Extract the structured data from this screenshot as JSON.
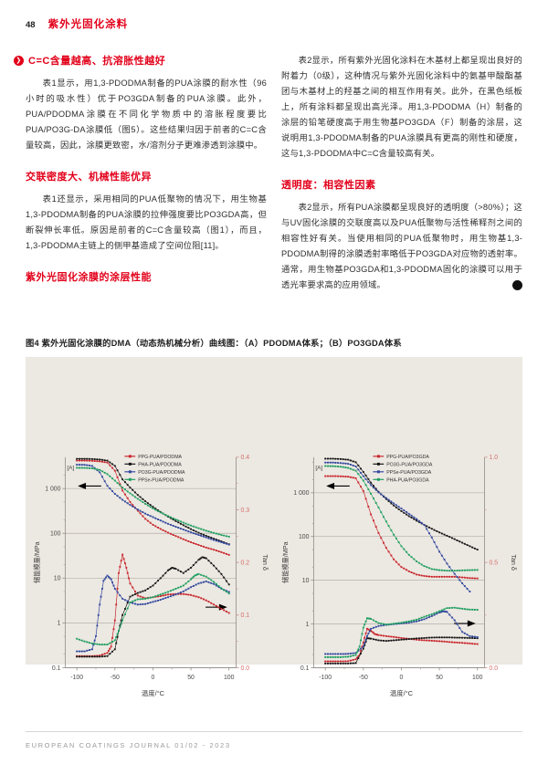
{
  "header": {
    "page_number": "48",
    "section_title": "紫外光光固化涂料",
    "section_title_display": "紫外光固化涂料"
  },
  "left_column": {
    "section1_heading": "C=C含量越高、抗溶胀性越好",
    "section1_body": "表1显示，用1,3-PDODMA制备的PUA涂膜的耐水性（96小时的吸水性）优于PO3GDA制备的PUA涂膜。此外，PUA/PDODMA涂膜在不同化学物质中的溶胀程度要比PUA/PO3G-DA涂膜低（图5）。这些结果归因于前者的C=C含量较高，因此，涂膜更致密，水/溶剂分子更难渗透到涂膜中。",
    "section2_heading": "交联密度大、机械性能优异",
    "section2_body": "表1还显示，采用相同的PUA低聚物的情况下，用生物基1,3-PDODMA制备的PUA涂膜的拉伸强度要比PO3GDA高，但断裂伸长率低。原因是前者的C=C含量较高（图1），而且，1,3-PDODMA主链上的侧甲基造成了空间位阻[11]。",
    "section3_heading": "紫外光固化涂膜的涂层性能"
  },
  "right_column": {
    "para1": "表2显示，所有紫外光固化涂料在木基材上都呈现出良好的附着力（0级），这种情况与紫外光固化涂料中的氨基甲酸酯基团与木基材上的羟基之间的相互作用有关。此外，在黑色纸板上，所有涂料都呈现出高光泽。用1,3-PDODMA（H）制备的涂层的铅笔硬度高于用生物基PO3GDA（F）制备的涂层，这说明用1,3-PDODMA制备的PUA涂膜具有更高的刚性和硬度，这与1,3-PDODMA中C=C含量较高有关。",
    "section_heading": "透明度：相容性因素",
    "para2": "表2显示，所有PUA涂膜都呈现良好的透明度（>80%）；这与UV固化涂膜的交联度高以及PUA低聚物与活性稀释剂之间的相容性好有关。当使用相同的PUA低聚物时，用生物基1,3-PDODMA制得的涂膜透射率略低于PO3GDA对应物的透射率。通常，用生物基PO3GDA和1,3-PDODMA固化的涂膜可以用于透光率要求高的应用领域。"
  },
  "figure": {
    "caption": "图4 紫外光固化涂膜的DMA（动态热机械分析）曲线图：（A）PDODMA体系；（B）PO3GDA体系"
  },
  "footer": {
    "text": "EUROPEAN COATINGS JOURNAL 01/02 - 2023"
  },
  "icons": {
    "lead_chevron": "❯",
    "end_arrow": "◂"
  },
  "colors": {
    "accent_red": "#e2001a",
    "figure_background": "#ece8e2",
    "series_red": "#c9252b",
    "series_black": "#161616",
    "series_blue": "#31479e",
    "series_green": "#1e9e5f",
    "right_axis_label": "#d4706c",
    "gridline": "#b3afa9"
  },
  "chart_data": [
    {
      "type": "line",
      "panel_label": "[A]",
      "xlabel": "温度/°C",
      "ylabel_left": "储能模量/MPa",
      "ylabel_right": "Tan δ",
      "x_range": [
        -100,
        100
      ],
      "x_ticks": [
        -100,
        -50,
        0,
        50,
        100
      ],
      "x_minor_ticks": [
        -75,
        -25,
        25,
        75
      ],
      "y_left_range_log": [
        0.1,
        5000
      ],
      "y_left_tick_values": [
        0.1,
        1,
        10,
        100,
        1000
      ],
      "y_left_tick_labels": [
        "0.1",
        "1",
        "10",
        "100",
        "1 000"
      ],
      "y_right_range": [
        0,
        0.4
      ],
      "y_right_tick_values": [
        0,
        0.1,
        0.2,
        0.3,
        0.4
      ],
      "y_right_tick_labels": [
        "0.0",
        "0.1",
        "0.2",
        "0.3",
        "0.4"
      ],
      "y_right_minor_ticks": [
        0.05,
        0.15,
        0.25,
        0.35
      ],
      "right_arrow_at": 0.115,
      "modulus_series": [
        {
          "name": "PPG-PUA/PDODMA",
          "color": "#c9252b",
          "x": [
            -100,
            -90,
            -80,
            -70,
            -60,
            -50,
            -40,
            -30,
            -20,
            -10,
            0,
            10,
            20,
            30,
            40,
            50,
            60,
            70,
            80,
            90,
            100
          ],
          "y": [
            4200,
            4200,
            4150,
            4050,
            3800,
            2500,
            900,
            500,
            320,
            210,
            155,
            125,
            103,
            87,
            74,
            63,
            55,
            48,
            43,
            38,
            33
          ]
        },
        {
          "name": "PHA-PUA/PDODMA",
          "color": "#161616",
          "x": [
            -100,
            -90,
            -80,
            -70,
            -60,
            -50,
            -40,
            -30,
            -20,
            -10,
            0,
            10,
            20,
            30,
            40,
            50,
            60,
            70,
            80,
            90,
            100
          ],
          "y": [
            4600,
            4600,
            4550,
            4450,
            4200,
            3200,
            1600,
            1050,
            720,
            520,
            390,
            300,
            235,
            188,
            152,
            124,
            103,
            88,
            76,
            66,
            57
          ]
        },
        {
          "name": "PO3G-PUA/PDODMA",
          "color": "#31479e",
          "x": [
            -100,
            -90,
            -80,
            -70,
            -60,
            -50,
            -40,
            -30,
            -20,
            -10,
            0,
            10,
            20,
            30,
            40,
            50,
            60,
            70,
            80,
            90,
            100
          ],
          "y": [
            3400,
            3380,
            3200,
            2300,
            1150,
            760,
            560,
            430,
            340,
            275,
            230,
            193,
            163,
            140,
            121,
            105,
            92,
            81,
            71,
            63,
            56
          ]
        },
        {
          "name": "PPSe-PUA/PDODMA",
          "color": "#1e9e5f",
          "x": [
            -100,
            -90,
            -80,
            -70,
            -60,
            -50,
            -40,
            -30,
            -20,
            -10,
            0,
            10,
            20,
            30,
            40,
            50,
            60,
            70,
            80,
            90,
            100
          ],
          "y": [
            2900,
            2880,
            2820,
            2600,
            2100,
            1500,
            1050,
            780,
            590,
            455,
            360,
            292,
            242,
            204,
            173,
            149,
            130,
            114,
            102,
            92,
            84
          ]
        }
      ],
      "tan_delta_series": [
        {
          "name": "PPG-PUA/PDODMA",
          "color": "#c9252b",
          "x": [
            -100,
            -90,
            -80,
            -70,
            -60,
            -55,
            -50,
            -45,
            -40,
            -35,
            -30,
            -20,
            -10,
            0,
            10,
            20,
            30,
            40,
            50,
            60,
            70,
            80,
            90,
            100
          ],
          "y": [
            0.022,
            0.022,
            0.022,
            0.023,
            0.028,
            0.04,
            0.09,
            0.18,
            0.215,
            0.19,
            0.16,
            0.137,
            0.132,
            0.134,
            0.136,
            0.139,
            0.14,
            0.14,
            0.138,
            0.134,
            0.128,
            0.12,
            0.112,
            0.104
          ]
        },
        {
          "name": "PHA-PUA/PDODMA",
          "color": "#161616",
          "x": [
            -100,
            -90,
            -80,
            -70,
            -60,
            -50,
            -45,
            -40,
            -30,
            -20,
            -10,
            0,
            10,
            20,
            25,
            30,
            40,
            50,
            60,
            65,
            70,
            80,
            90,
            100
          ],
          "y": [
            0.021,
            0.021,
            0.021,
            0.021,
            0.022,
            0.035,
            0.07,
            0.1,
            0.135,
            0.142,
            0.147,
            0.156,
            0.17,
            0.185,
            0.19,
            0.188,
            0.18,
            0.19,
            0.205,
            0.21,
            0.208,
            0.194,
            0.178,
            0.158
          ]
        },
        {
          "name": "PO3G-PUA/PDODMA",
          "color": "#31479e",
          "x": [
            -100,
            -90,
            -80,
            -75,
            -70,
            -65,
            -60,
            -55,
            -50,
            -40,
            -30,
            -20,
            -10,
            0,
            10,
            20,
            30,
            40,
            50,
            60,
            70,
            80,
            90,
            100
          ],
          "y": [
            0.031,
            0.031,
            0.035,
            0.06,
            0.12,
            0.165,
            0.175,
            0.168,
            0.15,
            0.131,
            0.124,
            0.12,
            0.121,
            0.125,
            0.129,
            0.134,
            0.139,
            0.145,
            0.153,
            0.16,
            0.164,
            0.159,
            0.15,
            0.144
          ]
        },
        {
          "name": "PPSe-PUA/PDODMA",
          "color": "#1e9e5f",
          "x": [
            -100,
            -90,
            -80,
            -70,
            -60,
            -50,
            -45,
            -40,
            -30,
            -20,
            -10,
            0,
            10,
            20,
            30,
            40,
            50,
            55,
            60,
            70,
            80,
            90,
            100
          ],
          "y": [
            0.055,
            0.05,
            0.046,
            0.044,
            0.044,
            0.052,
            0.07,
            0.09,
            0.124,
            0.13,
            0.131,
            0.134,
            0.139,
            0.144,
            0.15,
            0.156,
            0.168,
            0.175,
            0.178,
            0.173,
            0.163,
            0.151,
            0.141
          ]
        }
      ]
    },
    {
      "type": "line",
      "panel_label": "[A]",
      "xlabel": "温度/°C",
      "ylabel_left": "储能模量/MPa",
      "ylabel_right": "Tan δ",
      "x_range": [
        -100,
        100
      ],
      "x_ticks": [
        -100,
        -50,
        0,
        50,
        100
      ],
      "x_minor_ticks": [
        -75,
        -25,
        25,
        75
      ],
      "y_left_range_log": [
        0.1,
        6500
      ],
      "y_left_tick_values": [
        0.1,
        1,
        10,
        100,
        1000
      ],
      "y_left_tick_labels": [
        "0.1",
        "1",
        "10",
        "100",
        "1 000"
      ],
      "y_right_range": [
        0,
        1.0
      ],
      "y_right_tick_values": [
        0,
        0.5,
        1.0
      ],
      "y_right_tick_labels": [
        "0.0",
        "0.5",
        "1.0"
      ],
      "y_right_minor_ticks": [
        0.25,
        0.75
      ],
      "right_arrow_at": 0.21,
      "modulus_series": [
        {
          "name": "PPG-PUA/PO3GDA",
          "color": "#c9252b",
          "x": [
            -100,
            -90,
            -80,
            -70,
            -60,
            -50,
            -40,
            -30,
            -20,
            -10,
            0,
            10,
            20,
            30,
            40,
            50,
            60,
            70,
            80,
            90,
            100
          ],
          "y": [
            2400,
            2400,
            2380,
            2330,
            2150,
            1100,
            320,
            120,
            55,
            30,
            20,
            16,
            13.5,
            12.5,
            12,
            12,
            12,
            12,
            11.6,
            11.2,
            11
          ]
        },
        {
          "name": "PO3G-PUA/PO3GDA",
          "color": "#161616",
          "x": [
            -100,
            -90,
            -80,
            -70,
            -60,
            -50,
            -40,
            -30,
            -20,
            -10,
            0,
            10,
            20,
            30,
            40,
            50,
            60,
            70,
            80,
            90,
            100
          ],
          "y": [
            6000,
            6000,
            5900,
            5700,
            5000,
            3000,
            1700,
            1050,
            720,
            510,
            380,
            292,
            230,
            185,
            150,
            124,
            104,
            87,
            72,
            60,
            50
          ]
        },
        {
          "name": "PPSe-PUA/PO3GDA",
          "color": "#31479e",
          "x": [
            -100,
            -90,
            -80,
            -70,
            -60,
            -50,
            -40,
            -30,
            -20,
            -10,
            0,
            10,
            20,
            30,
            40,
            50,
            60,
            70,
            80,
            90
          ],
          "y": [
            4900,
            4900,
            4800,
            4600,
            4000,
            2400,
            1500,
            1020,
            760,
            570,
            435,
            330,
            250,
            185,
            95,
            45,
            24,
            14,
            8.5,
            5.5
          ]
        },
        {
          "name": "PHA-PUA/PO3GDA",
          "color": "#1e9e5f",
          "x": [
            -100,
            -90,
            -80,
            -70,
            -60,
            -50,
            -40,
            -30,
            -20,
            -10,
            0,
            10,
            20,
            30,
            40,
            50,
            60,
            70,
            80,
            90,
            100
          ],
          "y": [
            4100,
            4050,
            3950,
            3700,
            3200,
            1900,
            950,
            460,
            220,
            110,
            60,
            38,
            27,
            21,
            18,
            17,
            16.5,
            16.5,
            16.8,
            17,
            17.2
          ]
        }
      ],
      "tan_delta_series": [
        {
          "name": "PPG-PUA/PO3GDA",
          "color": "#c9252b",
          "x": [
            -100,
            -90,
            -80,
            -70,
            -60,
            -55,
            -50,
            -45,
            -40,
            -35,
            -30,
            -20,
            -10,
            0,
            10,
            20,
            30,
            40,
            50,
            60,
            70,
            80,
            90,
            100
          ],
          "y": [
            0.03,
            0.03,
            0.03,
            0.031,
            0.04,
            0.06,
            0.12,
            0.185,
            0.175,
            0.16,
            0.155,
            0.15,
            0.146,
            0.141,
            0.137,
            0.133,
            0.13,
            0.128,
            0.126,
            0.123,
            0.12,
            0.118,
            0.115,
            0.112
          ]
        },
        {
          "name": "PO3G-PUA/PO3GDA",
          "color": "#161616",
          "x": [
            -100,
            -90,
            -80,
            -70,
            -60,
            -50,
            -45,
            -40,
            -30,
            -20,
            -10,
            0,
            10,
            20,
            30,
            40,
            50,
            60,
            70,
            80,
            90,
            100
          ],
          "y": [
            0.02,
            0.02,
            0.02,
            0.02,
            0.022,
            0.09,
            0.14,
            0.138,
            0.13,
            0.127,
            0.13,
            0.133,
            0.136,
            0.139,
            0.141,
            0.143,
            0.144,
            0.144,
            0.143,
            0.142,
            0.141,
            0.14
          ]
        },
        {
          "name": "PPSe-PUA/PO3GDA",
          "color": "#31479e",
          "x": [
            -100,
            -90,
            -80,
            -70,
            -60,
            -50,
            -45,
            -40,
            -30,
            -20,
            -10,
            0,
            10,
            20,
            30,
            40,
            50,
            55,
            60,
            70,
            80,
            90,
            100
          ],
          "y": [
            0.065,
            0.065,
            0.065,
            0.066,
            0.07,
            0.1,
            0.15,
            0.185,
            0.198,
            0.203,
            0.207,
            0.21,
            0.214,
            0.22,
            0.23,
            0.245,
            0.262,
            0.268,
            0.265,
            0.225,
            0.17,
            0.15,
            0.145
          ]
        },
        {
          "name": "PHA-PUA/PO3GDA",
          "color": "#1e9e5f",
          "x": [
            -100,
            -90,
            -80,
            -70,
            -60,
            -55,
            -50,
            -45,
            -40,
            -30,
            -20,
            -10,
            0,
            10,
            20,
            30,
            40,
            50,
            60,
            70,
            80,
            90,
            100
          ],
          "y": [
            0.05,
            0.05,
            0.05,
            0.052,
            0.06,
            0.1,
            0.19,
            0.235,
            0.232,
            0.212,
            0.205,
            0.209,
            0.214,
            0.22,
            0.228,
            0.242,
            0.254,
            0.268,
            0.283,
            0.285,
            0.28,
            0.276,
            0.275
          ]
        }
      ]
    }
  ]
}
